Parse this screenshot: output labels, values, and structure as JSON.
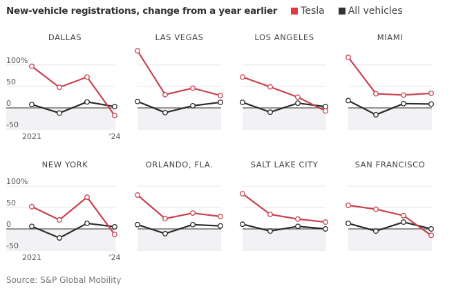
{
  "header": {
    "title": "New-vehicle registrations, change from a year earlier",
    "legend": [
      {
        "label": "Tesla",
        "color": "#e03a48"
      },
      {
        "label": "All vehicles",
        "color": "#333333"
      }
    ]
  },
  "source": "Source: S&P Global Mobility",
  "chart_data": {
    "type": "line",
    "title": "New-vehicle registrations, change from a year earlier",
    "xlabel": "",
    "ylabel": "",
    "x": [
      "2021",
      "2022",
      "2023",
      "2024"
    ],
    "x_tick_labels": [
      "2021",
      "'24"
    ],
    "y_ticks": [
      100,
      50,
      0,
      -50
    ],
    "y_tick_labels": [
      "100%",
      "50",
      "0",
      "-50"
    ],
    "ylim": [
      -55,
      110
    ],
    "grid": true,
    "legend_position": "top",
    "series_names": [
      "Tesla",
      "All vehicles"
    ],
    "series_colors": {
      "Tesla": "#c9414f",
      "All vehicles": "#2b2b2b"
    },
    "panels": [
      {
        "name": "DALLAS",
        "series": [
          {
            "name": "Tesla",
            "values": [
              97,
              48,
              72,
              -18
            ]
          },
          {
            "name": "All vehicles",
            "values": [
              8,
              -12,
              14,
              3
            ]
          }
        ]
      },
      {
        "name": "LAS VEGAS",
        "series": [
          {
            "name": "Tesla",
            "values": [
              133,
              31,
              46,
              29
            ]
          },
          {
            "name": "All vehicles",
            "values": [
              15,
              -11,
              5,
              13
            ]
          }
        ]
      },
      {
        "name": "LOS ANGELES",
        "series": [
          {
            "name": "Tesla",
            "values": [
              72,
              49,
              25,
              -7
            ]
          },
          {
            "name": "All vehicles",
            "values": [
              13,
              -10,
              11,
              3
            ]
          }
        ]
      },
      {
        "name": "MIAMI",
        "series": [
          {
            "name": "Tesla",
            "values": [
              118,
              33,
              30,
              34
            ]
          },
          {
            "name": "All vehicles",
            "values": [
              17,
              -16,
              10,
              9
            ]
          }
        ]
      },
      {
        "name": "NEW YORK",
        "series": [
          {
            "name": "Tesla",
            "values": [
              52,
              21,
              74,
              -13
            ]
          },
          {
            "name": "All vehicles",
            "values": [
              6,
              -21,
              13,
              5
            ]
          }
        ]
      },
      {
        "name": "ORLANDO, FLA.",
        "series": [
          {
            "name": "Tesla",
            "values": [
              79,
              24,
              37,
              29
            ]
          },
          {
            "name": "All vehicles",
            "values": [
              10,
              -11,
              10,
              7
            ]
          }
        ]
      },
      {
        "name": "SALT LAKE CITY",
        "series": [
          {
            "name": "Tesla",
            "values": [
              82,
              34,
              23,
              16
            ]
          },
          {
            "name": "All vehicles",
            "values": [
              11,
              -5,
              6,
              0
            ]
          }
        ]
      },
      {
        "name": "SAN FRANCISCO",
        "series": [
          {
            "name": "Tesla",
            "values": [
              55,
              46,
              31,
              -15
            ]
          },
          {
            "name": "All vehicles",
            "values": [
              13,
              -5,
              16,
              0
            ]
          }
        ]
      }
    ]
  }
}
